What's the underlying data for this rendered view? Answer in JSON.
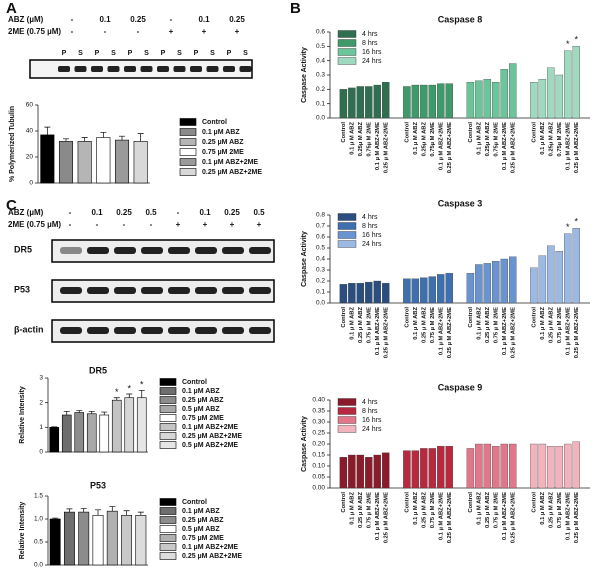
{
  "panel_labels": [
    "A",
    "B",
    "C"
  ],
  "blot_a": {
    "rows": [
      {
        "label": "ABZ (µM)",
        "lanes": [
          "-",
          "0.1",
          "0.25",
          "-",
          "0.1",
          "0.25"
        ]
      },
      {
        "label": "2ME (0.75 µM)",
        "lanes": [
          "-",
          "-",
          "-",
          "+",
          "+",
          "+"
        ]
      }
    ],
    "lane_labels": [
      "P",
      "S",
      "P",
      "S",
      "P",
      "S",
      "P",
      "S",
      "P",
      "S",
      "P",
      "S"
    ]
  },
  "blot_c": {
    "rows": [
      {
        "label": "ABZ (µM)",
        "lanes": [
          "-",
          "0.1",
          "0.25",
          "0.5",
          "-",
          "0.1",
          "0.25",
          "0.5"
        ]
      },
      {
        "label": "2ME (0.75 µM)",
        "lanes": [
          "-",
          "-",
          "-",
          "-",
          "+",
          "+",
          "+",
          "+"
        ]
      }
    ],
    "bands": [
      "DR5",
      "P53",
      "β-actin"
    ]
  },
  "chart_data": [
    {
      "type": "bar",
      "ylabel": "% Polymerized Tubulin",
      "categories": [
        "Control",
        "0.1 µM ABZ",
        "0.25 µM ABZ",
        "0.75 µM 2ME",
        "0.1 µM ABZ+2ME",
        "0.25 µM ABZ+2ME"
      ],
      "values": [
        37,
        32,
        32,
        35,
        33,
        32
      ],
      "errors": [
        6,
        2,
        3,
        4,
        3,
        6
      ],
      "colors": [
        "#000000",
        "#8a8a8a",
        "#b5b5b5",
        "#ffffff",
        "#9a9a9a",
        "#d8d8d8"
      ],
      "ylim": [
        0,
        60
      ],
      "yticks": [
        0,
        20,
        40,
        60
      ]
    },
    {
      "type": "grouped_bar",
      "title": "Caspase 8",
      "ylabel": "Caspase Activity",
      "categories": [
        "Control",
        "0.1 µ M ABZ",
        "0.25µ M ABZ",
        "0.75µ M 2ME",
        "0.1 µ M ABZ+2ME",
        "0.25 µ M ABZ+2ME"
      ],
      "series": [
        {
          "name": "4 hrs",
          "color": "#2f6e4f",
          "values": [
            0.2,
            0.21,
            0.22,
            0.22,
            0.23,
            0.25
          ]
        },
        {
          "name": "8 hrs",
          "color": "#3f9a6a",
          "values": [
            0.22,
            0.23,
            0.23,
            0.23,
            0.24,
            0.24
          ]
        },
        {
          "name": "16 hrs",
          "color": "#6cc49a",
          "values": [
            0.25,
            0.26,
            0.27,
            0.25,
            0.34,
            0.38
          ]
        },
        {
          "name": "24 hrs",
          "color": "#9ed9c0",
          "values": [
            0.25,
            0.27,
            0.35,
            0.3,
            0.47,
            0.5
          ]
        }
      ],
      "annotations": [
        {
          "series": 3,
          "index": 4,
          "text": "*"
        },
        {
          "series": 3,
          "index": 5,
          "text": "*"
        }
      ],
      "ylim": [
        0,
        0.6
      ],
      "yticks": [
        {
          "value": 0,
          "label": "0.0"
        },
        0.1,
        0.2,
        0.3,
        0.4,
        0.5,
        0.6
      ]
    },
    {
      "type": "grouped_bar",
      "title": "Caspase 3",
      "ylabel": "Caspase Activity",
      "categories": [
        "Control",
        "0.1 µ M ABZ",
        "0.25 µ M ABZ",
        "0.75 µ M 2ME",
        "0.1 µ M ABZ+2ME",
        "0.25 µ M ABZ+2ME"
      ],
      "series": [
        {
          "name": "4 hrs",
          "color": "#2a4e80",
          "values": [
            0.17,
            0.18,
            0.18,
            0.19,
            0.2,
            0.18
          ]
        },
        {
          "name": "8 hrs",
          "color": "#3e6fae",
          "values": [
            0.22,
            0.22,
            0.23,
            0.24,
            0.26,
            0.27
          ]
        },
        {
          "name": "16 hrs",
          "color": "#6a94cf",
          "values": [
            0.27,
            0.35,
            0.36,
            0.38,
            0.4,
            0.42
          ]
        },
        {
          "name": "24 hrs",
          "color": "#9cb9e3",
          "values": [
            0.32,
            0.43,
            0.52,
            0.47,
            0.63,
            0.68
          ]
        }
      ],
      "annotations": [
        {
          "series": 3,
          "index": 4,
          "text": "*"
        },
        {
          "series": 3,
          "index": 5,
          "text": "*"
        }
      ],
      "ylim": [
        0,
        0.8
      ],
      "yticks": [
        {
          "value": 0,
          "label": "0.0"
        },
        0.1,
        0.2,
        0.3,
        0.4,
        0.5,
        0.6,
        0.7,
        0.8
      ]
    },
    {
      "type": "grouped_bar",
      "title": "Caspase 9",
      "ylabel": "Caspase Activity",
      "categories": [
        "Control",
        "0.1 µ M ABZ",
        "0.25 µ M ABZ",
        "0.75 µ M 2ME",
        "0.1 µ M ABZ+2ME",
        "0.25 µ M ABZ+2ME"
      ],
      "series": [
        {
          "name": "4 hrs",
          "color": "#8b1a2b",
          "values": [
            0.14,
            0.15,
            0.15,
            0.14,
            0.15,
            0.16
          ]
        },
        {
          "name": "8 hrs",
          "color": "#b8283e",
          "values": [
            0.17,
            0.17,
            0.18,
            0.18,
            0.19,
            0.19
          ]
        },
        {
          "name": "16 hrs",
          "color": "#e0788a",
          "values": [
            0.18,
            0.2,
            0.2,
            0.19,
            0.2,
            0.2
          ]
        },
        {
          "name": "24 hrs",
          "color": "#f2b3bd",
          "values": [
            0.2,
            0.2,
            0.19,
            0.19,
            0.2,
            0.21
          ]
        }
      ],
      "ylim": [
        0,
        0.4
      ],
      "yticks": [
        {
          "value": 0,
          "label": "0.00"
        },
        0.05,
        {
          "value": 0.1,
          "label": "0.10"
        },
        0.15,
        {
          "value": 0.2,
          "label": "0.20"
        },
        0.25,
        {
          "value": 0.3,
          "label": "0.30"
        },
        0.35,
        {
          "value": 0.4,
          "label": "0.40"
        }
      ]
    },
    {
      "type": "bar",
      "title": "DR5",
      "ylabel": "Relative Intensity",
      "categories": [
        "Control",
        "0.1 µM ABZ",
        "0.25 µM ABZ",
        "0.5 µM ABZ",
        "0.75 µM 2ME",
        "0.1 µM ABZ+2ME",
        "0.25 µM ABZ+2ME",
        "0.5 µM ABZ+2ME"
      ],
      "values": [
        1.0,
        1.5,
        1.6,
        1.55,
        1.5,
        2.1,
        2.2,
        2.2
      ],
      "errors": [
        0.02,
        0.15,
        0.08,
        0.1,
        0.12,
        0.1,
        0.15,
        0.3
      ],
      "colors": [
        "#000000",
        "#6e6e6e",
        "#8c8c8c",
        "#a8a8a8",
        "#ffffff",
        "#c4c4c4",
        "#d6d6d6",
        "#e6e6e6"
      ],
      "annotations": [
        {
          "index": 5,
          "text": "*"
        },
        {
          "index": 6,
          "text": "*"
        },
        {
          "index": 7,
          "text": "*"
        }
      ],
      "ylim": [
        0,
        3
      ],
      "yticks": [
        0,
        1,
        2,
        3
      ]
    },
    {
      "type": "bar",
      "title": "P53",
      "ylabel": "Relative Intensity",
      "categories": [
        "Control",
        "0.1 µM ABZ",
        "0.25 µM ABZ",
        "0.5 µM ABZ",
        "0.75 µM 2ME",
        "0.1 µM ABZ+2ME",
        "0.25 µM ABZ+2ME"
      ],
      "values": [
        1.0,
        1.15,
        1.15,
        1.08,
        1.17,
        1.08,
        1.08
      ],
      "errors": [
        0.02,
        0.07,
        0.08,
        0.12,
        0.1,
        0.1,
        0.07
      ],
      "colors": [
        "#000000",
        "#6e6e6e",
        "#8c8c8c",
        "#ffffff",
        "#b0b0b0",
        "#c8c8c8",
        "#dcdcdc"
      ],
      "ylim": [
        0,
        1.5
      ],
      "yticks": [
        {
          "value": 0,
          "label": "0.0"
        },
        0.5,
        {
          "value": 1,
          "label": "1.0"
        },
        1.5
      ]
    }
  ]
}
